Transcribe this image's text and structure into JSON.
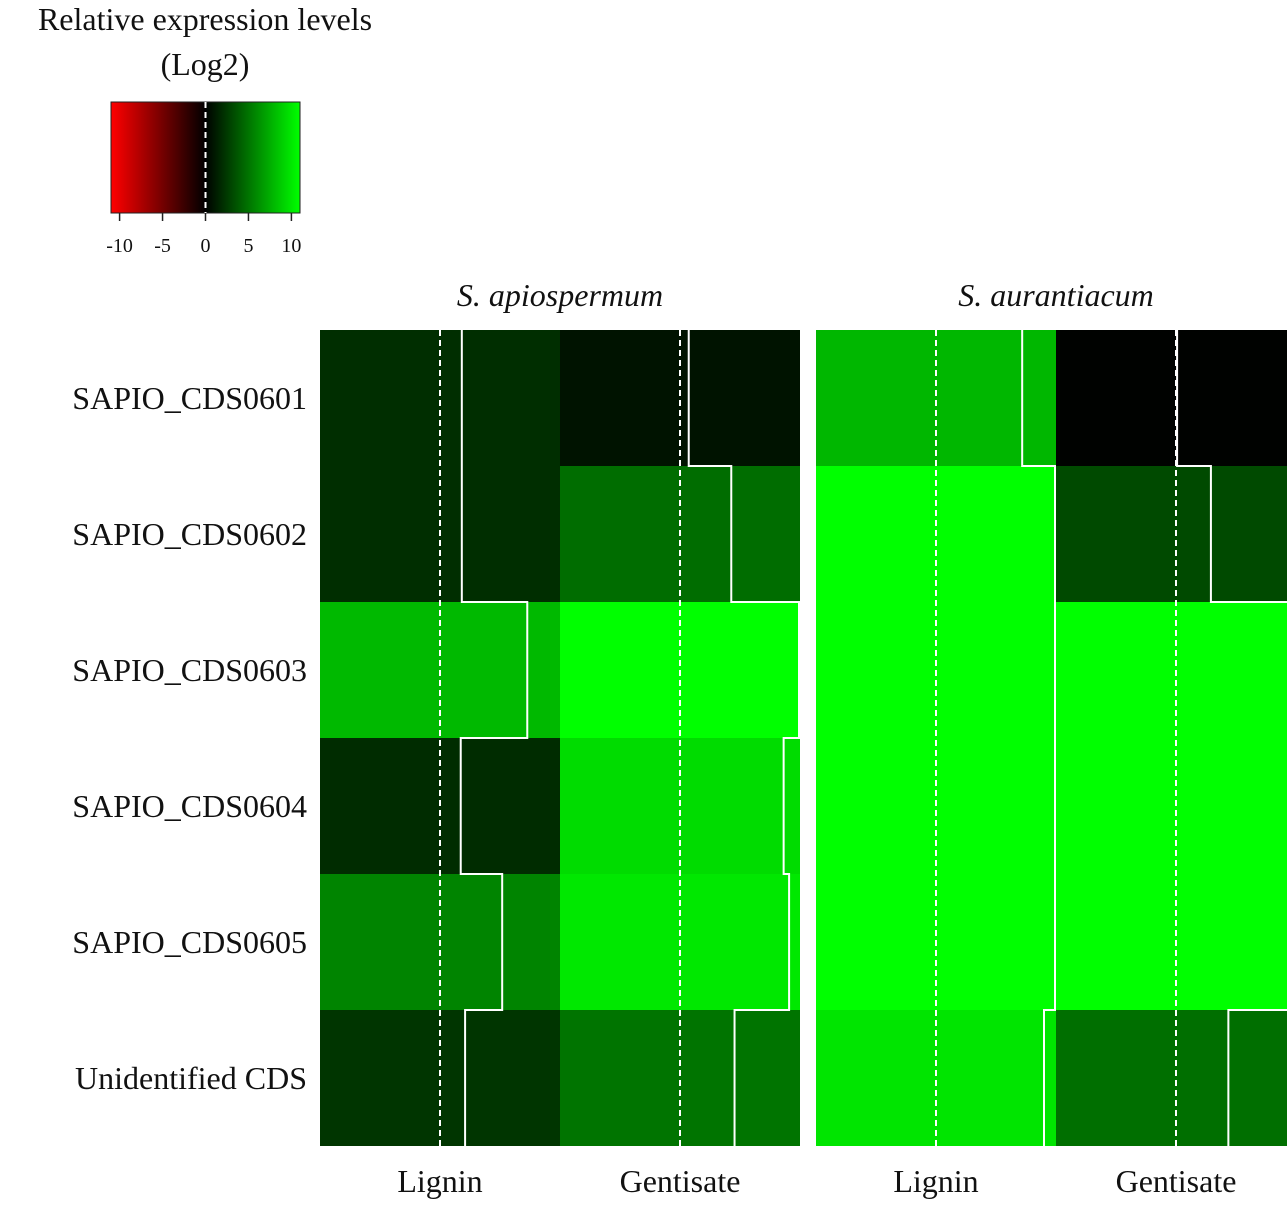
{
  "chart_data": {
    "type": "heatmap",
    "colorbar": {
      "title_line1": "Relative expression levels",
      "title_line2": "(Log2)",
      "range": [
        -11,
        11
      ],
      "ticks": [
        {
          "value": -10,
          "label": "-10"
        },
        {
          "value": -5,
          "label": "-5"
        },
        {
          "value": 0,
          "label": "0"
        },
        {
          "value": 5,
          "label": "5"
        },
        {
          "value": 10,
          "label": "10"
        }
      ],
      "colors": {
        "low": "#ff0000",
        "mid": "#000000",
        "high": "#00ff00"
      }
    },
    "rows": [
      "SAPIO_CDS0601",
      "SAPIO_CDS0602",
      "SAPIO_CDS0603",
      "SAPIO_CDS0604",
      "SAPIO_CDS0605",
      "Unidentified CDS"
    ],
    "columns": [
      "Lignin",
      "Gentisate"
    ],
    "panels": [
      {
        "name": "S. apiospermum",
        "values": [
          [
            2.0,
            0.8
          ],
          [
            2.0,
            4.7
          ],
          [
            8.0,
            13.9
          ],
          [
            1.9,
            9.5
          ],
          [
            5.7,
            10.0
          ],
          [
            2.3,
            5.0
          ]
        ]
      },
      {
        "name": "S. aurantiacum",
        "values": [
          [
            7.9,
            0.1
          ],
          [
            11.0,
            3.2
          ],
          [
            11.0,
            18.0
          ],
          [
            11.0,
            12.0
          ],
          [
            11.0,
            12.0
          ],
          [
            9.9,
            4.8
          ]
        ]
      }
    ]
  }
}
